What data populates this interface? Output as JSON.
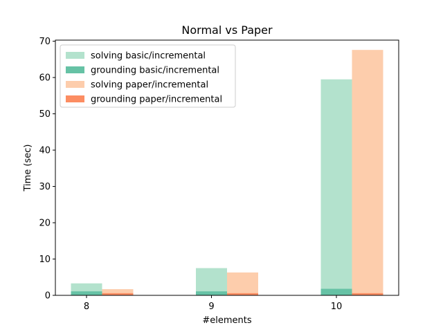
{
  "chart_data": {
    "type": "bar",
    "title": "Normal vs Paper",
    "xlabel": "#elements",
    "ylabel": "Time (sec)",
    "categories": [
      "8",
      "9",
      "10"
    ],
    "ylim": [
      0,
      70.3
    ],
    "yticks": [
      0,
      10,
      20,
      30,
      40,
      50,
      60,
      70
    ],
    "legend_position": "upper-left",
    "stacking": "overlaid",
    "series": [
      {
        "name": "solving basic/incremental",
        "group": "basic",
        "color": "#b3e2cd",
        "values": [
          3.3,
          7.5,
          59.5
        ]
      },
      {
        "name": "grounding basic/incremental",
        "group": "basic",
        "color": "#66c2a5",
        "values": [
          1.1,
          1.1,
          1.8
        ]
      },
      {
        "name": "solving paper/incremental",
        "group": "paper",
        "color": "#fdcdac",
        "values": [
          1.7,
          6.3,
          67.6
        ]
      },
      {
        "name": "grounding paper/incremental",
        "group": "paper",
        "color": "#fc8d62",
        "values": [
          0.6,
          0.6,
          0.6
        ]
      }
    ]
  }
}
